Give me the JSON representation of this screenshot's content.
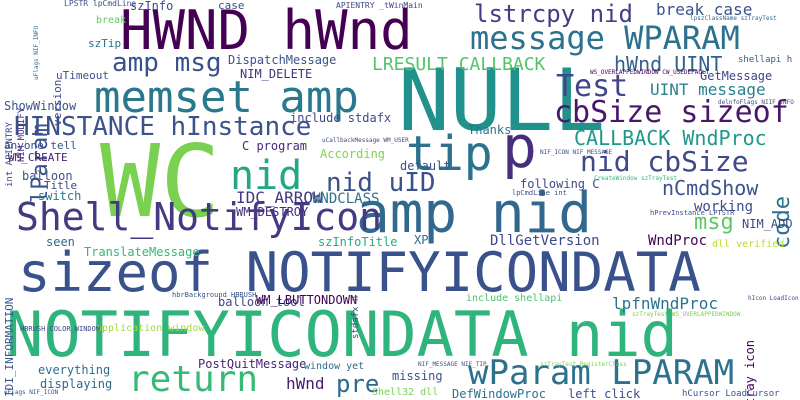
{
  "words": [
    {
      "text": "NOTIFYICONDATA nid",
      "color": "#2fb47c",
      "rotate": 0
    },
    {
      "text": "sizeof NOTIFYICONDATA",
      "color": "#3a528b",
      "rotate": 0
    },
    {
      "text": "WC",
      "color": "#7ad151",
      "rotate": 0
    },
    {
      "text": "NULL",
      "color": "#21918c",
      "rotate": 0
    },
    {
      "text": "amp nid",
      "color": "#31688e",
      "rotate": 0
    },
    {
      "text": "HWND hWnd",
      "color": "#440154",
      "rotate": 0
    },
    {
      "text": "memset amp",
      "color": "#2a788e",
      "rotate": 0
    },
    {
      "text": "Shell_NotifyIcon",
      "color": "#443983",
      "rotate": 0
    },
    {
      "text": "tip",
      "color": "#2c728e",
      "rotate": 0
    },
    {
      "text": "p",
      "color": "#472d7b",
      "rotate": 0
    },
    {
      "text": "nid",
      "color": "#22a884",
      "rotate": 0
    },
    {
      "text": "message WPARAM",
      "color": "#2c728e",
      "rotate": 0
    },
    {
      "text": "HINSTANCE hInstance",
      "color": "#3b528b",
      "rotate": 0
    },
    {
      "text": "return",
      "color": "#38b977",
      "rotate": 0
    },
    {
      "text": "wParam LPARAM",
      "color": "#2c728e",
      "rotate": 0
    },
    {
      "text": "cbSize sizeof",
      "color": "#481769",
      "rotate": 0
    },
    {
      "text": "Test",
      "color": "#404688",
      "rotate": 0
    },
    {
      "text": "lstrcpy nid",
      "color": "#433e85",
      "rotate": 0
    },
    {
      "text": "nid cbSize",
      "color": "#3f4889",
      "rotate": 0
    },
    {
      "text": "amp msg",
      "color": "#3b518b",
      "rotate": 0
    },
    {
      "text": "LRESULT CALLBACK",
      "color": "#52c569",
      "rotate": 0
    },
    {
      "text": "nid uID",
      "color": "#3b518b",
      "rotate": 0
    },
    {
      "text": "CALLBACK WndProc",
      "color": "#1f988b",
      "rotate": 0
    },
    {
      "text": "nCmdShow",
      "color": "#3b528b",
      "rotate": 0
    },
    {
      "text": "hWnd UINT",
      "color": "#34618d",
      "rotate": 0
    },
    {
      "text": "code",
      "color": "#2c728e",
      "rotate": -90
    },
    {
      "text": "msg",
      "color": "#5ec962",
      "rotate": 0
    },
    {
      "text": "pre",
      "color": "#31688e",
      "rotate": 0
    },
    {
      "text": "lParam",
      "color": "#3a538b",
      "rotate": -90
    },
    {
      "text": "lpfnWndProc",
      "color": "#2c728e",
      "rotate": 0
    },
    {
      "text": "break case",
      "color": "#3b528b",
      "rotate": 0
    },
    {
      "text": "UINT message",
      "color": "#26828e",
      "rotate": 0
    },
    {
      "text": "IDC_ARROW",
      "color": "#443983",
      "rotate": 0
    },
    {
      "text": "WNDCLASS",
      "color": "#2d708e",
      "rotate": 0
    },
    {
      "text": "DllGetVersion",
      "color": "#3f4889",
      "rotate": 0
    },
    {
      "text": "szInfo",
      "color": "#3e4a89",
      "rotate": 0
    },
    {
      "text": "DispatchMessage",
      "color": "#3b528b",
      "rotate": 0
    },
    {
      "text": "hWnd",
      "color": "#481b6d",
      "rotate": 0
    },
    {
      "text": "working",
      "color": "#3e4a89",
      "rotate": 0
    },
    {
      "text": "TranslateMessage",
      "color": "#35b779",
      "rotate": 0
    },
    {
      "text": "WndProc",
      "color": "#440154",
      "rotate": 0
    },
    {
      "text": "NIM_ADD",
      "color": "#3e4a89",
      "rotate": 0
    },
    {
      "text": "GetMessage",
      "color": "#404387",
      "rotate": 0
    },
    {
      "text": "NIM_DELETE",
      "color": "#46327e",
      "rotate": 0
    },
    {
      "text": "WM_DESTROY",
      "color": "#472d7b",
      "rotate": 0
    },
    {
      "text": "Thanks",
      "color": "#2d708e",
      "rotate": 0
    },
    {
      "text": "According",
      "color": "#84d44b",
      "rotate": 0
    },
    {
      "text": "ShowWindow",
      "color": "#3a548c",
      "rotate": 0
    },
    {
      "text": "balloon tool",
      "color": "#3f4889",
      "rotate": 0
    },
    {
      "text": "PostQuitMessage",
      "color": "#482475",
      "rotate": 0
    },
    {
      "text": "displaying",
      "color": "#31688e",
      "rotate": 0
    },
    {
      "text": "everything",
      "color": "#2e6e8e",
      "rotate": 0
    },
    {
      "text": "missing",
      "color": "#3b518b",
      "rotate": 0
    },
    {
      "text": "DefWindowProc",
      "color": "#2c728e",
      "rotate": 0
    },
    {
      "text": "left click",
      "color": "#3d4d8a",
      "rotate": 0
    },
    {
      "text": "tray icon",
      "color": "#440154",
      "rotate": -90
    },
    {
      "text": "szInfoTitle",
      "color": "#25ab82",
      "rotate": 0
    },
    {
      "text": "XP",
      "color": "#2e6e8e",
      "rotate": 0
    },
    {
      "text": "WM_LBUTTONDOWN",
      "color": "#440154",
      "rotate": 0
    },
    {
      "text": "include shellapi",
      "color": "#4ac16d",
      "rotate": 0
    },
    {
      "text": "include stdafx",
      "color": "#3e4a89",
      "rotate": 0
    },
    {
      "text": "C program",
      "color": "#482878",
      "rotate": 0
    },
    {
      "text": "default",
      "color": "#3b528b",
      "rotate": 0
    },
    {
      "text": "following C",
      "color": "#3e4a89",
      "rotate": 0
    },
    {
      "text": "balloon",
      "color": "#3b528b",
      "rotate": 0
    },
    {
      "text": "switch",
      "color": "#2a788e",
      "rotate": 0
    },
    {
      "text": "seen",
      "color": "#31688e",
      "rotate": 0
    },
    {
      "text": "Title",
      "color": "#3f4889",
      "rotate": 0
    },
    {
      "text": "WM_CREATE",
      "color": "#482173",
      "rotate": 0
    },
    {
      "text": "anyone tell",
      "color": "#3b528b",
      "rotate": 0
    },
    {
      "text": "IDI_INFORMATION",
      "color": "#38598c",
      "rotate": -90
    },
    {
      "text": "szTip",
      "color": "#2c728e",
      "rotate": 0
    },
    {
      "text": "case",
      "color": "#3e4a89",
      "rotate": 0
    },
    {
      "text": "uTimeout",
      "color": "#3b528b",
      "rotate": 0
    },
    {
      "text": "version",
      "color": "#3f4889",
      "rotate": -90
    },
    {
      "text": "NIM_MODIFY",
      "color": "#46307e",
      "rotate": -90
    },
    {
      "text": "int APIENTRY",
      "color": "#3e4a89",
      "rotate": -90
    },
    {
      "text": "break",
      "color": "#5ec962",
      "rotate": 0
    },
    {
      "text": "LPSTR lpCmdLine",
      "color": "#3b528b",
      "rotate": 0
    },
    {
      "text": "APIENTRY _tWinMain",
      "color": "#414487",
      "rotate": 0
    },
    {
      "text": "shellapi h",
      "color": "#3b528b",
      "rotate": 0
    },
    {
      "text": "application window",
      "color": "#9fda3a",
      "rotate": 0
    },
    {
      "text": "HBRUSH COLOR_WINDOW",
      "color": "#3e4a89",
      "rotate": 0
    },
    {
      "text": "hbrBackground HBRUSH",
      "color": "#3b528b",
      "rotate": 0
    },
    {
      "text": "stdafx h",
      "color": "#3e4a89",
      "rotate": -90
    },
    {
      "text": "window yet",
      "color": "#31688e",
      "rotate": 0
    },
    {
      "text": "Shell32 dll",
      "color": "#7ad151",
      "rotate": 0
    },
    {
      "text": "hCursor LoadCursor",
      "color": "#3b528b",
      "rotate": 0
    },
    {
      "text": "hPrevInstance LPTSTR",
      "color": "#3e4a89",
      "rotate": 0
    },
    {
      "text": "lpCmdLine int",
      "color": "#3b528b",
      "rotate": 0
    },
    {
      "text": "dll verified",
      "color": "#b5de2b",
      "rotate": 0
    },
    {
      "text": "NIF_MESSAGE NIF_TIP",
      "color": "#3b528b",
      "rotate": 0
    },
    {
      "text": "uCallbackMessage WM_USER",
      "color": "#3e4a89",
      "rotate": 0
    },
    {
      "text": "NIF_ICON NIF_MESSAGE",
      "color": "#3b528b",
      "rotate": 0
    },
    {
      "text": "CreateWindow szTrayTest",
      "color": "#35b779",
      "rotate": 0
    },
    {
      "text": "WS_OVERLAPPEDWINDOW CW_USEDEFAULT",
      "color": "#440154",
      "rotate": 0
    },
    {
      "text": "lpszClassName szTrayTest",
      "color": "#31688e",
      "rotate": 0
    },
    {
      "text": "delnfoFlags NIIF_INFO",
      "color": "#3b528b",
      "rotate": 0
    },
    {
      "text": "szTrayTest RegisterClass",
      "color": "#7ad151",
      "rotate": 0
    },
    {
      "text": "uFlags NIF_ICON",
      "color": "#3b528b",
      "rotate": 0
    },
    {
      "text": "hIcon LoadIcon",
      "color": "#3e4a89",
      "rotate": 0
    },
    {
      "text": "uFlags NIF_INFO",
      "color": "#31688e",
      "rotate": -90
    },
    {
      "text": "szTrayTest WS_OVERLAPPEDWINDOW",
      "color": "#7ad151",
      "rotate": 0
    }
  ]
}
